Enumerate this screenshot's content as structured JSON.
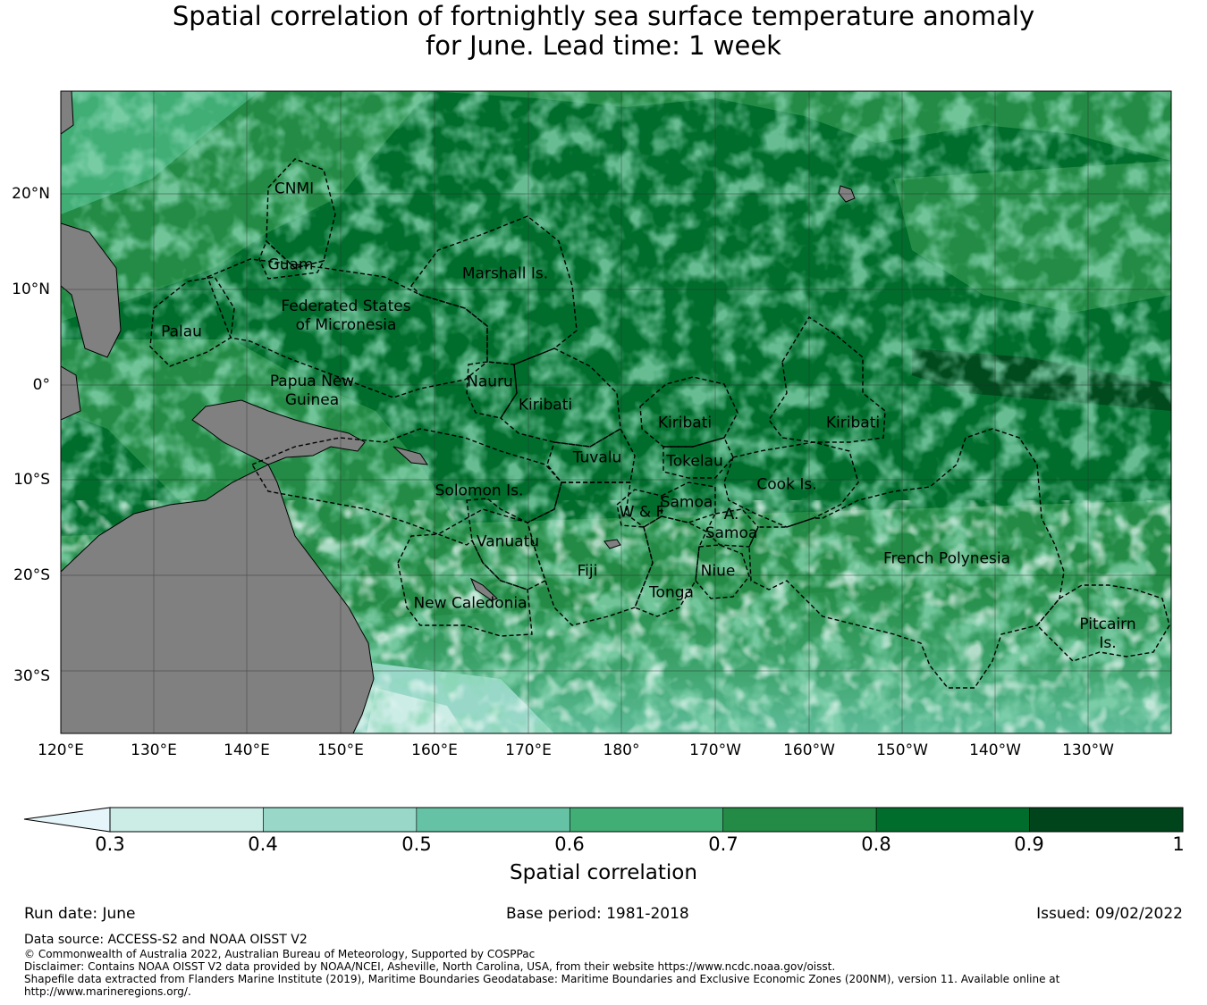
{
  "title_line1": "Spatial correlation of fortnightly sea surface temperature anomaly",
  "title_line2": "for June. Lead time: 1 week",
  "map": {
    "lat_labels": [
      "20°N",
      "10°N",
      "0°",
      "10°S",
      "20°S",
      "30°S"
    ],
    "lon_labels": [
      "120°E",
      "130°E",
      "140°E",
      "150°E",
      "160°E",
      "170°E",
      "180°",
      "170°W",
      "160°W",
      "150°W",
      "140°W",
      "130°W"
    ],
    "land_color": "#808080",
    "regions": [
      {
        "name": "CNMI"
      },
      {
        "name": "Guam"
      },
      {
        "name": "Marshall Is."
      },
      {
        "name": "Federated States of Micronesia",
        "line1": "Federated States",
        "line2": "of Micronesia"
      },
      {
        "name": "Palau"
      },
      {
        "name": "Papua New Guinea",
        "line1": "Papua New",
        "line2": "Guinea"
      },
      {
        "name": "Nauru"
      },
      {
        "name": "Kiribati"
      },
      {
        "name": "Kiribati"
      },
      {
        "name": "Kiribati"
      },
      {
        "name": "Tuvalu"
      },
      {
        "name": "Tokelau"
      },
      {
        "name": "Solomon Is."
      },
      {
        "name": "Cook Is."
      },
      {
        "name": "Samoa"
      },
      {
        "name": "W & F"
      },
      {
        "name": "A. Samoa",
        "line1": "A.",
        "line2": "Samoa"
      },
      {
        "name": "Vanuatu"
      },
      {
        "name": "Fiji"
      },
      {
        "name": "Niue"
      },
      {
        "name": "Tonga"
      },
      {
        "name": "French Polynesia"
      },
      {
        "name": "New Caledonia"
      },
      {
        "name": "Pitcairn Is.",
        "line1": "Pitcairn",
        "line2": "Is."
      }
    ]
  },
  "colorbar": {
    "label": "Spatial correlation",
    "ticks": [
      "0.3",
      "0.4",
      "0.5",
      "0.6",
      "0.7",
      "0.8",
      "0.9",
      "1"
    ],
    "under_color": "#e5f5f9",
    "colors": [
      "#ccece6",
      "#99d8c9",
      "#66c2a4",
      "#41ae76",
      "#238b45",
      "#006d2c",
      "#00441b"
    ]
  },
  "run_date": "Run date: June",
  "base_period": "Base period: 1981-2018",
  "issued": "Issued: 09/02/2022",
  "footer": {
    "data_source": "Data source: ACCESS-S2 and NOAA OISST V2",
    "copyright": "© Commonwealth of Australia 2022, Australian Bureau of Meteorology, Supported by COSPPac",
    "disclaimer": "Disclaimer: Contains NOAA OISST V2 data provided by NOAA/NCEI, Asheville, North Carolina, USA, from their website https://www.ncdc.noaa.gov/oisst.",
    "shapefile_line1": "Shapefile data extracted from Flanders Marine Institute (2019), Maritime Boundaries Geodatabase: Maritime Boundaries and Exclusive Economic Zones (200NM), version 11. Available online at",
    "shapefile_line2": "http://www.marineregions.org/."
  }
}
